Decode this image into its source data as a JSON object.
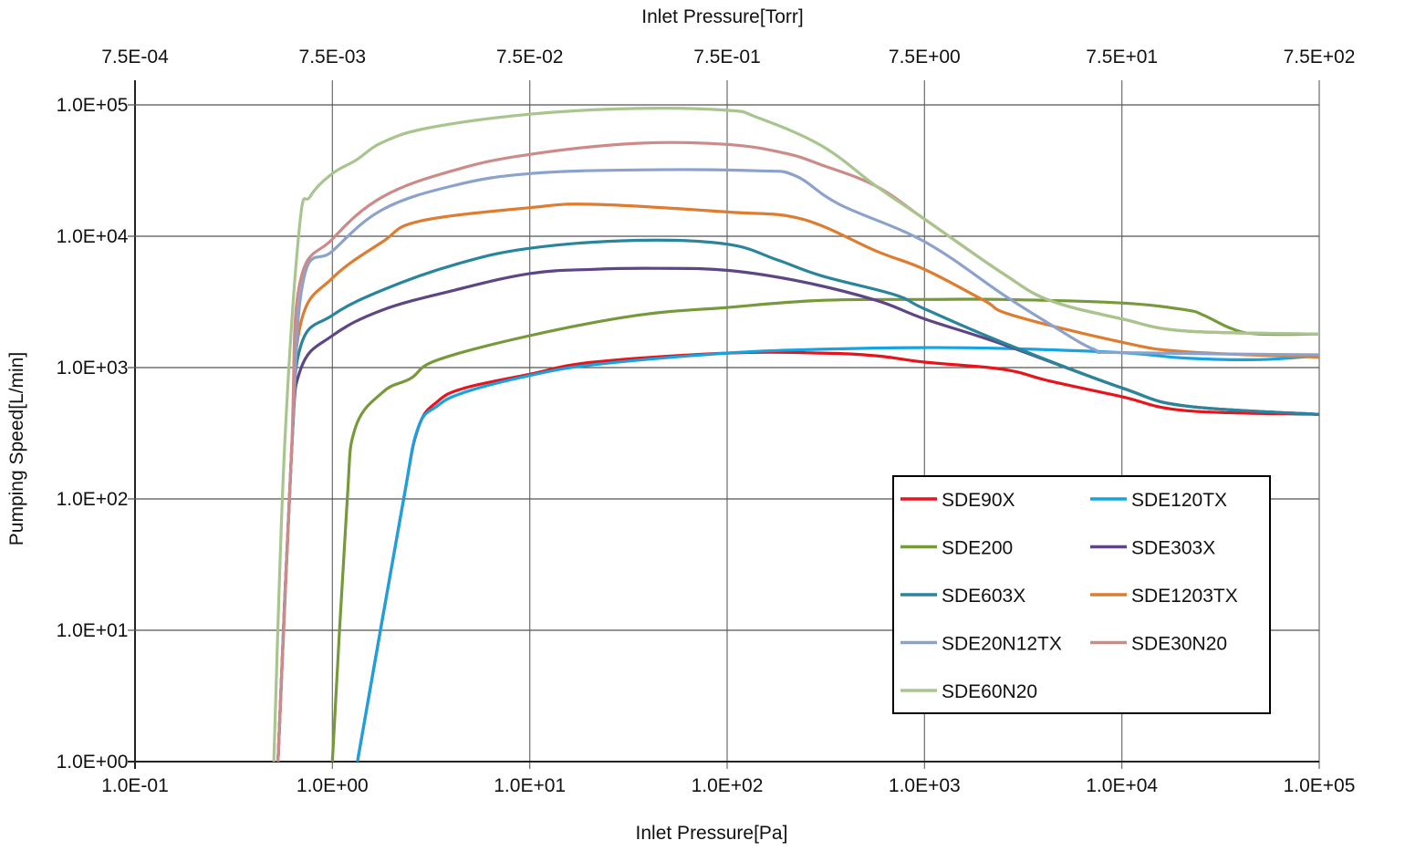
{
  "chart_data": {
    "type": "line",
    "title": "",
    "xlabel": "Inlet Pressure[Pa]",
    "x2label": "Inlet Pressure[Torr]",
    "ylabel": "Pumping Speed[L/min]",
    "xscale": "log",
    "yscale": "log",
    "xlim": [
      0.1,
      100000
    ],
    "ylim": [
      1,
      100000
    ],
    "grid": true,
    "legend_position": "bottom-right",
    "x_tick_labels": [
      "1.0E-01",
      "1.0E+00",
      "1.0E+01",
      "1.0E+02",
      "1.0E+03",
      "1.0E+04",
      "1.0E+05"
    ],
    "x2_tick_labels": [
      "7.5E-04",
      "7.5E-03",
      "7.5E-02",
      "7.5E-01",
      "7.5E+00",
      "7.5E+01",
      "7.5E+02"
    ],
    "y_tick_labels": [
      "1.0E+00",
      "1.0E+01",
      "1.0E+02",
      "1.0E+03",
      "1.0E+04",
      "1.0E+05"
    ],
    "series": [
      {
        "name": "SDE90X",
        "color": "#e8141b",
        "points": [
          [
            1.34,
            1
          ],
          [
            2.24,
            81
          ],
          [
            2.71,
            340
          ],
          [
            3.4,
            550
          ],
          [
            4.7,
            700
          ],
          [
            10,
            890
          ],
          [
            21,
            1100
          ],
          [
            100,
            1290
          ],
          [
            300,
            1290
          ],
          [
            570,
            1230
          ],
          [
            1000,
            1100
          ],
          [
            2500,
            970
          ],
          [
            4300,
            790
          ],
          [
            10000,
            600
          ],
          [
            21000,
            470
          ],
          [
            100000,
            440
          ]
        ]
      },
      {
        "name": "SDE120TX",
        "color": "#16a3e0",
        "points": [
          [
            1.34,
            1
          ],
          [
            2.24,
            81
          ],
          [
            2.7,
            340
          ],
          [
            3.4,
            510
          ],
          [
            4.7,
            650
          ],
          [
            10,
            870
          ],
          [
            21,
            1050
          ],
          [
            100,
            1290
          ],
          [
            300,
            1380
          ],
          [
            1000,
            1420
          ],
          [
            2500,
            1400
          ],
          [
            10000,
            1300
          ],
          [
            21000,
            1180
          ],
          [
            49000,
            1150
          ],
          [
            100000,
            1230
          ]
        ]
      },
      {
        "name": "SDE200",
        "color": "#76993a",
        "points": [
          [
            1.0,
            1
          ],
          [
            1.18,
            82
          ],
          [
            1.3,
            340
          ],
          [
            1.8,
            650
          ],
          [
            2.5,
            830
          ],
          [
            3.4,
            1140
          ],
          [
            10,
            1750
          ],
          [
            35,
            2500
          ],
          [
            100,
            2870
          ],
          [
            300,
            3250
          ],
          [
            1000,
            3300
          ],
          [
            2500,
            3300
          ],
          [
            10000,
            3100
          ],
          [
            21000,
            2750
          ],
          [
            26000,
            2500
          ],
          [
            36000,
            1980
          ],
          [
            49000,
            1800
          ],
          [
            100000,
            1800
          ]
        ]
      },
      {
        "name": "SDE303X",
        "color": "#5e4585",
        "points": [
          [
            0.53,
            1
          ],
          [
            0.62,
            215
          ],
          [
            0.69,
            970
          ],
          [
            1.0,
            1750
          ],
          [
            1.8,
            2750
          ],
          [
            4.2,
            3900
          ],
          [
            10,
            5200
          ],
          [
            21,
            5600
          ],
          [
            44,
            5700
          ],
          [
            100,
            5500
          ],
          [
            240,
            4500
          ],
          [
            570,
            3250
          ],
          [
            1000,
            2350
          ],
          [
            2500,
            1500
          ],
          [
            10000,
            700
          ],
          [
            21000,
            510
          ],
          [
            100000,
            440
          ]
        ]
      },
      {
        "name": "SDE603X",
        "color": "#2a859c",
        "points": [
          [
            0.53,
            1
          ],
          [
            0.62,
            215
          ],
          [
            0.69,
            1450
          ],
          [
            1.0,
            2500
          ],
          [
            1.8,
            3900
          ],
          [
            4.2,
            6100
          ],
          [
            10,
            8100
          ],
          [
            35,
            9300
          ],
          [
            100,
            8700
          ],
          [
            180,
            6600
          ],
          [
            300,
            5000
          ],
          [
            700,
            3600
          ],
          [
            1000,
            2800
          ],
          [
            2500,
            1550
          ],
          [
            10000,
            700
          ],
          [
            21000,
            510
          ],
          [
            100000,
            440
          ]
        ]
      },
      {
        "name": "SDE1203TX",
        "color": "#de7c30",
        "points": [
          [
            0.53,
            1
          ],
          [
            0.62,
            215
          ],
          [
            0.69,
            2150
          ],
          [
            1.0,
            4800
          ],
          [
            1.8,
            9100
          ],
          [
            2.76,
            13000
          ],
          [
            10,
            16500
          ],
          [
            21,
            17500
          ],
          [
            100,
            15300
          ],
          [
            240,
            13500
          ],
          [
            570,
            7700
          ],
          [
            1000,
            5600
          ],
          [
            2000,
            3250
          ],
          [
            2800,
            2500
          ],
          [
            10000,
            1560
          ],
          [
            21000,
            1320
          ],
          [
            100000,
            1200
          ]
        ]
      },
      {
        "name": "SDE20N12TX",
        "color": "#8ba3cc",
        "points": [
          [
            0.53,
            1
          ],
          [
            0.62,
            215
          ],
          [
            0.71,
            4500
          ],
          [
            1.0,
            7700
          ],
          [
            1.8,
            16000
          ],
          [
            4.2,
            24500
          ],
          [
            10,
            30000
          ],
          [
            35,
            32000
          ],
          [
            140,
            31500
          ],
          [
            220,
            29000
          ],
          [
            370,
            17500
          ],
          [
            1000,
            9100
          ],
          [
            2500,
            3600
          ],
          [
            4300,
            2150
          ],
          [
            7200,
            1380
          ],
          [
            10000,
            1300
          ],
          [
            100000,
            1250
          ]
        ]
      },
      {
        "name": "SDE30N20",
        "color": "#cc8a88",
        "points": [
          [
            0.53,
            1
          ],
          [
            0.62,
            215
          ],
          [
            0.68,
            4200
          ],
          [
            1.0,
            9500
          ],
          [
            1.8,
            20000
          ],
          [
            4.2,
            32000
          ],
          [
            10,
            42000
          ],
          [
            35,
            51000
          ],
          [
            100,
            50000
          ],
          [
            195,
            43000
          ],
          [
            300,
            35000
          ],
          [
            570,
            24000
          ],
          [
            1000,
            13500
          ],
          [
            2500,
            5200
          ],
          [
            4300,
            3250
          ],
          [
            10000,
            2350
          ],
          [
            21000,
            1900
          ],
          [
            100000,
            1800
          ]
        ]
      },
      {
        "name": "SDE60N20",
        "color": "#a9c58e",
        "points": [
          [
            0.505,
            1
          ],
          [
            0.57,
            215
          ],
          [
            0.68,
            11500
          ],
          [
            0.77,
            20000
          ],
          [
            1.0,
            30000
          ],
          [
            1.32,
            38000
          ],
          [
            1.8,
            52000
          ],
          [
            3.1,
            67000
          ],
          [
            10,
            85000
          ],
          [
            35,
            94000
          ],
          [
            100,
            91000
          ],
          [
            140,
            81000
          ],
          [
            300,
            49000
          ],
          [
            570,
            24000
          ],
          [
            1000,
            13500
          ],
          [
            2500,
            5200
          ],
          [
            4300,
            3250
          ],
          [
            10000,
            2350
          ],
          [
            21000,
            1900
          ],
          [
            100000,
            1800
          ]
        ]
      }
    ]
  }
}
